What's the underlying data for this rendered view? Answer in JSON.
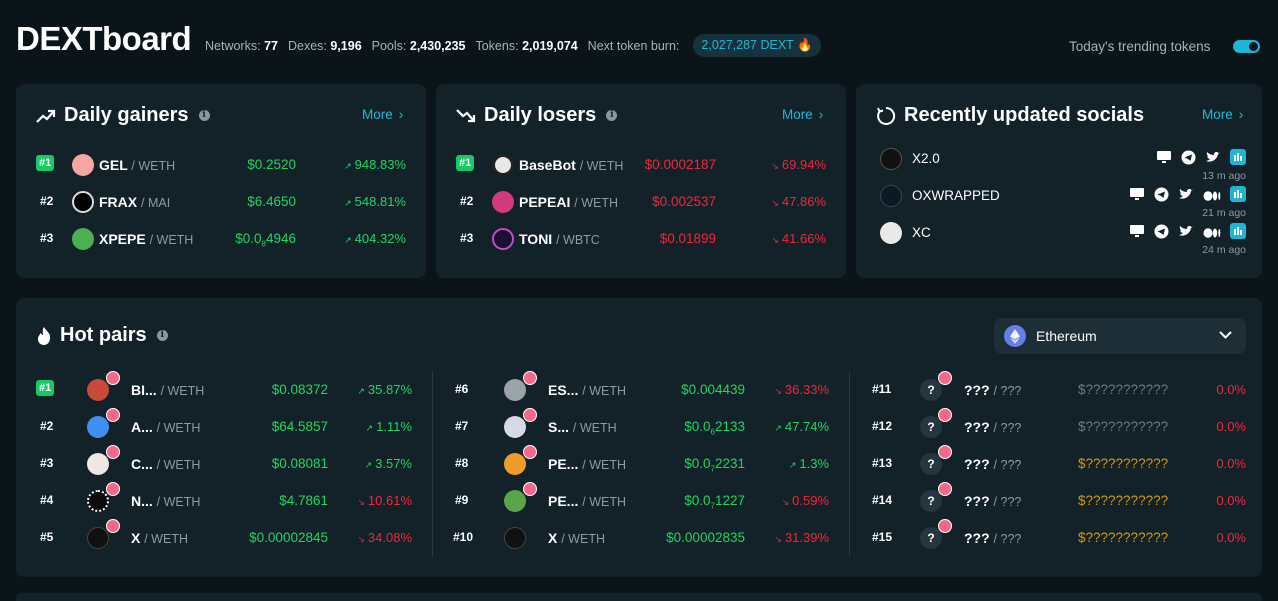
{
  "header": {
    "logo": "DEXTboard",
    "stats": [
      {
        "label": "Networks:",
        "value": "77"
      },
      {
        "label": "Dexes:",
        "value": "9,196"
      },
      {
        "label": "Pools:",
        "value": "2,430,235"
      },
      {
        "label": "Tokens:",
        "value": "2,019,074"
      },
      {
        "label": "Next token burn:",
        "value": ""
      }
    ],
    "burn_value": "2,027,287 DEXT",
    "trending_label": "Today's trending tokens",
    "trending_toggle": "on"
  },
  "gainers": {
    "title": "Daily gainers",
    "more": "More",
    "rows": [
      {
        "rank": "#1",
        "name": "GEL",
        "pair": "/ WETH",
        "price": "$0.2520",
        "change": "948.83%"
      },
      {
        "rank": "#2",
        "name": "FRAX",
        "pair": "/ MAI",
        "price": "$6.4650",
        "change": "548.81%"
      },
      {
        "rank": "#3",
        "name": "XPEPE",
        "pair": "/ WETH",
        "price_pre": "$0.0",
        "price_sub": "8",
        "price_post": "4946",
        "change": "404.32%"
      }
    ]
  },
  "losers": {
    "title": "Daily losers",
    "more": "More",
    "rows": [
      {
        "rank": "#1",
        "name": "BaseBot",
        "pair": "/ WETH",
        "price": "$0.0002187",
        "change": "69.94%"
      },
      {
        "rank": "#2",
        "name": "PEPEAI",
        "pair": "/ WETH",
        "price": "$0.002537",
        "change": "47.86%"
      },
      {
        "rank": "#3",
        "name": "TONI",
        "pair": "/ WBTC",
        "price": "$0.01899",
        "change": "41.66%"
      }
    ]
  },
  "socials": {
    "title": "Recently updated socials",
    "more": "More",
    "rows": [
      {
        "name": "X2.0",
        "time": "13 m ago"
      },
      {
        "name": "OXWRAPPED",
        "time": "21 m ago"
      },
      {
        "name": "XC",
        "time": "24 m ago"
      }
    ]
  },
  "hot_pairs": {
    "title": "Hot pairs",
    "network": "Ethereum",
    "rows": [
      {
        "rank": "#1",
        "name": "BI...",
        "pair": "/ WETH",
        "price": "$0.08372",
        "change": "35.87%"
      },
      {
        "rank": "#2",
        "name": "A...",
        "pair": "/ WETH",
        "price": "$64.5857",
        "change": "1.11%"
      },
      {
        "rank": "#3",
        "name": "C...",
        "pair": "/ WETH",
        "price": "$0.08081",
        "change": "3.57%"
      },
      {
        "rank": "#4",
        "name": "N...",
        "pair": "/ WETH",
        "price": "$4.7861",
        "change": "10.61%"
      },
      {
        "rank": "#5",
        "name": "X",
        "pair": "/ WETH",
        "price": "$0.00002845",
        "change": "34.08%"
      },
      {
        "rank": "#6",
        "name": "ES...",
        "pair": "/ WETH",
        "price": "$0.004439",
        "change": "36.33%"
      },
      {
        "rank": "#7",
        "name": "S...",
        "pair": "/ WETH",
        "price_pre": "$0.0",
        "price_sub": "6",
        "price_post": "2133",
        "change": "47.74%"
      },
      {
        "rank": "#8",
        "name": "PE...",
        "pair": "/ WETH",
        "price_pre": "$0.0",
        "price_sub": "7",
        "price_post": "2231",
        "change": "1.3%"
      },
      {
        "rank": "#9",
        "name": "PE...",
        "pair": "/ WETH",
        "price_pre": "$0.0",
        "price_sub": "7",
        "price_post": "1227",
        "change": "0.59%"
      },
      {
        "rank": "#10",
        "name": "X",
        "pair": "/ WETH",
        "price": "$0.00002835",
        "change": "31.39%"
      },
      {
        "rank": "#11",
        "name": "???",
        "pair": "/ ???",
        "price": "$???????????",
        "change": "0.0%"
      },
      {
        "rank": "#12",
        "name": "???",
        "pair": "/ ???",
        "price": "$???????????",
        "change": "0.0%"
      },
      {
        "rank": "#13",
        "name": "???",
        "pair": "/ ???",
        "price": "$???????????",
        "change": "0.0%"
      },
      {
        "rank": "#14",
        "name": "???",
        "pair": "/ ???",
        "price": "$???????????",
        "change": "0.0%"
      },
      {
        "rank": "#15",
        "name": "???",
        "pair": "/ ???",
        "price": "$???????????",
        "change": "0.0%"
      }
    ]
  },
  "colors": {
    "background": "#0b1419",
    "card": "#132129",
    "accent": "#22b8d6",
    "positive": "#1ed760",
    "negative": "#f0263d",
    "rank_badge": "#17c964",
    "hidden_price": "#d49b0d"
  },
  "icons": {
    "gainers": "trending-up-icon",
    "losers": "trending-down-icon",
    "socials": "refresh-icon",
    "hot_pairs": "flame-icon",
    "network": "ethereum-icon",
    "social_links": [
      "website-icon",
      "telegram-icon",
      "twitter-icon",
      "medium-icon",
      "dextools-icon"
    ]
  }
}
